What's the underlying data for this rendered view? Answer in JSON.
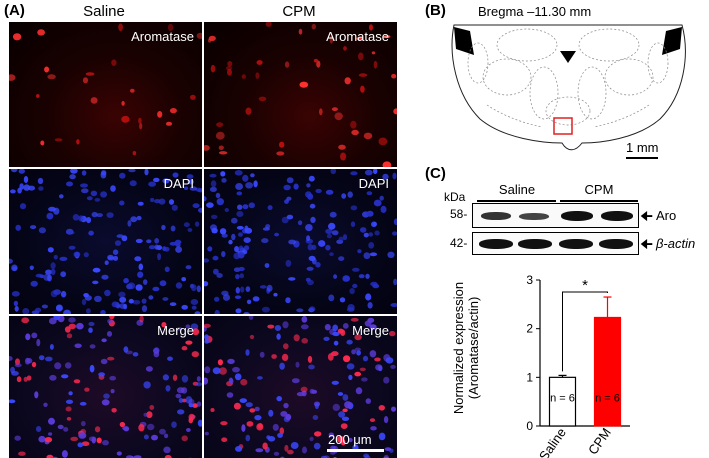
{
  "panels": {
    "a": "(A)",
    "b": "(B)",
    "c": "(C)"
  },
  "panel_a": {
    "columns": [
      "Saline",
      "CPM"
    ],
    "rows": [
      "Aromatase",
      "DAPI",
      "Merge"
    ],
    "scale_bar": "200 μm"
  },
  "panel_b": {
    "title": "Bregma –11.30 mm",
    "scale_bar": "1 mm",
    "roi_color": "#e02020"
  },
  "panel_c_blot": {
    "unit": "kDa",
    "markers": [
      "58-",
      "42-"
    ],
    "groups": [
      "Saline",
      "CPM"
    ],
    "bands": [
      "Aro",
      "β-actin"
    ]
  },
  "chart_data": {
    "type": "bar",
    "categories": [
      "Saline",
      "CPM"
    ],
    "values": [
      1.0,
      2.23
    ],
    "errors": [
      0.04,
      0.42
    ],
    "n_labels": [
      "n = 6",
      "n = 6"
    ],
    "bar_colors": [
      "#ffffff",
      "#ff0000"
    ],
    "title": "",
    "xlabel": "",
    "ylabel": "Normalized expression",
    "ylabel2": "(Aromatase/actin)",
    "ylim": [
      0,
      3
    ],
    "yticks": [
      "0",
      "1",
      "2",
      "3"
    ],
    "annotation": "*"
  }
}
